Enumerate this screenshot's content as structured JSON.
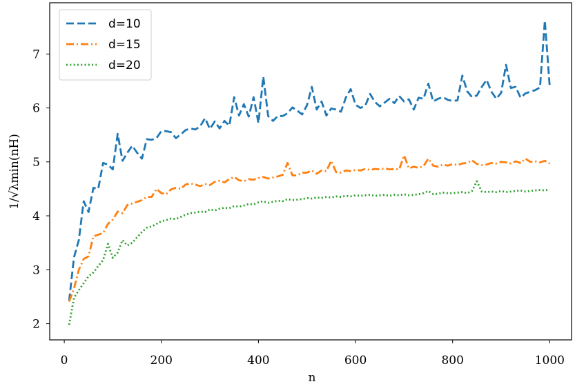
{
  "chart_data": {
    "type": "line",
    "xlabel": "n",
    "ylabel": "1/√λmin(nH)",
    "xlim": [
      -30,
      1045
    ],
    "ylim": [
      1.7,
      7.95
    ],
    "xticks": [
      0,
      200,
      400,
      600,
      800,
      1000
    ],
    "yticks": [
      2,
      3,
      4,
      5,
      6,
      7
    ],
    "grid": false,
    "legend_position": "top-left",
    "series": [
      {
        "name": "d=10",
        "color": "#1f77b4",
        "style": "dashed",
        "x": [
          10,
          20,
          30,
          40,
          50,
          60,
          70,
          80,
          90,
          100,
          110,
          120,
          130,
          140,
          150,
          160,
          170,
          180,
          190,
          200,
          210,
          220,
          230,
          240,
          250,
          260,
          270,
          280,
          290,
          300,
          310,
          320,
          330,
          340,
          350,
          360,
          370,
          380,
          390,
          400,
          410,
          420,
          430,
          440,
          450,
          460,
          470,
          480,
          490,
          500,
          510,
          520,
          530,
          540,
          550,
          560,
          570,
          580,
          590,
          600,
          610,
          620,
          630,
          640,
          650,
          660,
          670,
          680,
          690,
          700,
          710,
          720,
          730,
          740,
          750,
          760,
          770,
          780,
          790,
          800,
          810,
          820,
          830,
          840,
          850,
          860,
          870,
          880,
          890,
          900,
          910,
          920,
          930,
          940,
          950,
          960,
          970,
          980,
          990,
          1000
        ],
        "y": [
          2.42,
          3.23,
          3.55,
          4.27,
          4.07,
          4.52,
          4.5,
          4.98,
          4.95,
          4.86,
          5.52,
          5.02,
          5.17,
          5.3,
          5.17,
          5.06,
          5.42,
          5.41,
          5.44,
          5.57,
          5.57,
          5.55,
          5.44,
          5.51,
          5.59,
          5.62,
          5.6,
          5.66,
          5.81,
          5.61,
          5.75,
          5.62,
          5.76,
          5.67,
          6.2,
          5.86,
          6.07,
          5.84,
          6.2,
          5.72,
          6.58,
          5.85,
          5.76,
          5.85,
          5.85,
          5.9,
          6.01,
          5.95,
          5.88,
          6.05,
          6.39,
          5.97,
          6.12,
          5.86,
          5.99,
          5.97,
          5.93,
          6.19,
          6.35,
          6.06,
          6.0,
          6.04,
          6.26,
          6.11,
          6.03,
          6.1,
          6.17,
          6.09,
          6.22,
          6.12,
          6.16,
          5.97,
          6.19,
          6.17,
          6.45,
          6.12,
          6.17,
          6.2,
          6.15,
          6.13,
          6.14,
          6.6,
          6.31,
          6.2,
          6.23,
          6.39,
          6.52,
          6.3,
          6.17,
          6.28,
          6.8,
          6.37,
          6.39,
          6.19,
          6.27,
          6.3,
          6.33,
          6.38,
          7.62,
          6.4
        ]
      },
      {
        "name": "d=15",
        "color": "#ff7f0e",
        "style": "dashdot",
        "x": [
          10,
          20,
          30,
          40,
          50,
          60,
          70,
          80,
          90,
          100,
          110,
          120,
          130,
          140,
          150,
          160,
          170,
          180,
          190,
          200,
          210,
          220,
          230,
          240,
          250,
          260,
          270,
          280,
          290,
          300,
          310,
          320,
          330,
          340,
          350,
          360,
          370,
          380,
          390,
          400,
          410,
          420,
          430,
          440,
          450,
          460,
          470,
          480,
          490,
          500,
          510,
          520,
          530,
          540,
          550,
          560,
          570,
          580,
          590,
          600,
          610,
          620,
          630,
          640,
          650,
          660,
          670,
          680,
          690,
          700,
          710,
          720,
          730,
          740,
          750,
          760,
          770,
          780,
          790,
          800,
          810,
          820,
          830,
          840,
          850,
          860,
          870,
          880,
          890,
          900,
          910,
          920,
          930,
          940,
          950,
          960,
          970,
          980,
          990,
          1000
        ],
        "y": [
          2.41,
          2.65,
          3.0,
          3.2,
          3.25,
          3.62,
          3.65,
          3.68,
          3.85,
          3.93,
          4.08,
          4.05,
          4.2,
          4.23,
          4.26,
          4.29,
          4.35,
          4.35,
          4.5,
          4.42,
          4.4,
          4.49,
          4.52,
          4.5,
          4.58,
          4.6,
          4.58,
          4.55,
          4.59,
          4.57,
          4.63,
          4.65,
          4.62,
          4.68,
          4.72,
          4.66,
          4.64,
          4.68,
          4.67,
          4.7,
          4.72,
          4.69,
          4.71,
          4.73,
          4.76,
          4.98,
          4.75,
          4.75,
          4.8,
          4.8,
          4.84,
          4.78,
          4.84,
          4.83,
          5.02,
          4.81,
          4.8,
          4.84,
          4.83,
          4.85,
          4.84,
          4.87,
          4.85,
          4.87,
          4.86,
          4.88,
          4.86,
          4.87,
          4.86,
          5.12,
          4.88,
          4.91,
          4.89,
          4.92,
          5.06,
          4.93,
          4.91,
          4.95,
          4.93,
          4.96,
          4.94,
          4.97,
          4.98,
          5.03,
          4.96,
          4.94,
          4.95,
          4.98,
          4.97,
          5.0,
          4.99,
          4.97,
          5.01,
          4.98,
          5.06,
          5.0,
          5.01,
          4.99,
          5.02,
          4.97
        ]
      },
      {
        "name": "d=20",
        "color": "#2ca02c",
        "style": "dotted",
        "x": [
          10,
          20,
          30,
          40,
          50,
          60,
          70,
          80,
          90,
          100,
          110,
          120,
          130,
          140,
          150,
          160,
          170,
          180,
          190,
          200,
          210,
          220,
          230,
          240,
          250,
          260,
          270,
          280,
          290,
          300,
          310,
          320,
          330,
          340,
          350,
          360,
          370,
          380,
          390,
          400,
          410,
          420,
          430,
          440,
          450,
          460,
          470,
          480,
          490,
          500,
          510,
          520,
          530,
          540,
          550,
          560,
          570,
          580,
          590,
          600,
          610,
          620,
          630,
          640,
          650,
          660,
          670,
          680,
          690,
          700,
          710,
          720,
          730,
          740,
          750,
          760,
          770,
          780,
          790,
          800,
          810,
          820,
          830,
          840,
          850,
          860,
          870,
          880,
          890,
          900,
          910,
          920,
          930,
          940,
          950,
          960,
          970,
          980,
          990,
          1000
        ],
        "y": [
          1.98,
          2.48,
          2.62,
          2.75,
          2.88,
          2.95,
          3.07,
          3.18,
          3.48,
          3.22,
          3.32,
          3.55,
          3.45,
          3.5,
          3.6,
          3.7,
          3.78,
          3.8,
          3.85,
          3.9,
          3.92,
          3.95,
          3.94,
          3.98,
          4.02,
          4.05,
          4.06,
          4.08,
          4.07,
          4.12,
          4.1,
          4.13,
          4.15,
          4.14,
          4.18,
          4.17,
          4.19,
          4.22,
          4.21,
          4.25,
          4.27,
          4.24,
          4.26,
          4.28,
          4.27,
          4.31,
          4.29,
          4.3,
          4.31,
          4.33,
          4.32,
          4.34,
          4.33,
          4.35,
          4.34,
          4.36,
          4.35,
          4.37,
          4.36,
          4.38,
          4.37,
          4.38,
          4.39,
          4.37,
          4.38,
          4.39,
          4.37,
          4.39,
          4.38,
          4.4,
          4.38,
          4.39,
          4.4,
          4.42,
          4.46,
          4.4,
          4.41,
          4.43,
          4.42,
          4.42,
          4.43,
          4.44,
          4.42,
          4.46,
          4.64,
          4.45,
          4.44,
          4.45,
          4.44,
          4.46,
          4.44,
          4.45,
          4.46,
          4.47,
          4.45,
          4.46,
          4.47,
          4.48,
          4.47,
          4.49
        ]
      }
    ]
  }
}
